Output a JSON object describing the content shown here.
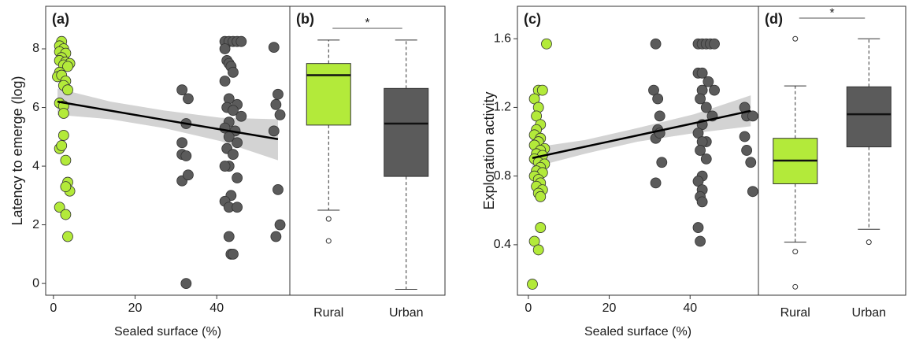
{
  "chart_data": [
    {
      "type": "scatter",
      "label": "(a)",
      "x_label": "Sealed surface (%)",
      "y_label": "Latency to emerge (log)",
      "xlim": [
        -1.9,
        57.9
      ],
      "ylim": [
        -0.4,
        9.45
      ],
      "xticks": [
        0,
        20,
        40
      ],
      "yticks": [
        0,
        2,
        4,
        6,
        8
      ],
      "series": [
        {
          "color": "#b3ea3a",
          "x": [
            2,
            1.5,
            2.5,
            1.5,
            3,
            2,
            1.5,
            3,
            4,
            2.5,
            3.5,
            1.5,
            1,
            2,
            3,
            2.5,
            3.5,
            1.5,
            2.5,
            2.5,
            2.5,
            1.5,
            2,
            3,
            3.5,
            4,
            3,
            1.5,
            3,
            3.5
          ],
          "values": [
            8.25,
            8.1,
            8.0,
            7.9,
            7.85,
            7.7,
            7.6,
            7.55,
            7.5,
            7.45,
            7.4,
            7.2,
            7.05,
            7.1,
            6.9,
            6.75,
            6.6,
            6.15,
            6.05,
            5.8,
            5.05,
            4.6,
            4.7,
            4.2,
            3.45,
            3.15,
            3.3,
            2.6,
            2.35,
            1.6
          ]
        },
        {
          "color": "#5b5b5b",
          "x": [
            31.5,
            31.5,
            31.5,
            31.5,
            32.5,
            33,
            32.5,
            32.5,
            33,
            42,
            43,
            44,
            45,
            46,
            42,
            42.5,
            43,
            43.5,
            44,
            42,
            43,
            45,
            42.5,
            44,
            46,
            43,
            42,
            44.5,
            43,
            45,
            42.5,
            44,
            43,
            42,
            45,
            43.5,
            42,
            43,
            45,
            43,
            43.5,
            44,
            54,
            55,
            54.5,
            55.5,
            54,
            55,
            55.5,
            54.5
          ],
          "values": [
            6.6,
            4.8,
            4.4,
            3.5,
            0.0,
            6.3,
            5.45,
            4.35,
            3.7,
            8.25,
            8.25,
            8.25,
            8.25,
            8.25,
            8.0,
            7.6,
            7.5,
            7.4,
            7.2,
            6.9,
            6.3,
            6.1,
            6.0,
            5.9,
            5.7,
            5.5,
            5.3,
            5.2,
            5.0,
            4.8,
            4.6,
            4.4,
            4.0,
            4.0,
            3.6,
            3.0,
            2.8,
            2.6,
            2.6,
            1.6,
            1.0,
            1.0,
            8.05,
            6.45,
            6.1,
            5.75,
            5.2,
            3.2,
            2.0,
            1.6
          ]
        }
      ],
      "fit": {
        "color": "#000000",
        "band_color": "#d3d3d3",
        "x": [
          1,
          14,
          27,
          41,
          55
        ],
        "values": [
          6.2,
          5.89,
          5.58,
          5.25,
          4.92
        ],
        "lower": [
          5.75,
          5.6,
          5.3,
          4.85,
          4.2
        ],
        "upper": [
          6.65,
          6.2,
          5.9,
          5.65,
          5.6
        ]
      }
    },
    {
      "type": "box",
      "label": "(b)",
      "ylim": [
        -0.4,
        9.45
      ],
      "categories": [
        "Rural",
        "Urban"
      ],
      "colors": [
        "#b3ea3a",
        "#5b5b5b"
      ],
      "boxes": [
        {
          "min": 2.5,
          "q1": 5.4,
          "median": 7.1,
          "q3": 7.5,
          "max": 8.3,
          "outliers": [
            2.2,
            1.45
          ]
        },
        {
          "min": -0.2,
          "q1": 3.65,
          "median": 5.45,
          "q3": 6.65,
          "max": 8.3,
          "outliers": []
        }
      ],
      "annotation": {
        "text": "*",
        "y": 8.7
      }
    },
    {
      "type": "scatter",
      "label": "(c)",
      "x_label": "Sealed surface (%)",
      "y_label": "Exploration activity",
      "xlim": [
        -2.7,
        56.9
      ],
      "ylim": [
        0.106,
        1.789
      ],
      "xticks": [
        0,
        20,
        40
      ],
      "yticks": [
        0.4,
        0.8,
        1.2,
        1.6
      ],
      "series": [
        {
          "color": "#b3ea3a",
          "x": [
            4.5,
            2.5,
            3.5,
            1.5,
            2.5,
            2,
            3,
            2,
            1.5,
            3,
            2.5,
            1.5,
            4,
            3,
            2,
            3.5,
            1.5,
            2.5,
            4,
            3,
            2,
            3.5,
            1.5,
            2.5,
            3,
            2,
            3.5,
            2.5,
            3,
            3,
            1.5,
            2.5,
            1
          ],
          "values": [
            1.57,
            1.3,
            1.3,
            1.25,
            1.2,
            1.15,
            1.1,
            1.07,
            1.04,
            1.02,
            1.0,
            0.98,
            0.96,
            0.95,
            0.93,
            0.92,
            0.9,
            0.88,
            0.87,
            0.85,
            0.83,
            0.82,
            0.8,
            0.78,
            0.76,
            0.74,
            0.72,
            0.7,
            0.68,
            0.5,
            0.42,
            0.37,
            0.17
          ]
        },
        {
          "color": "#5b5b5b",
          "x": [
            31.5,
            31,
            32,
            32.5,
            32,
            31.5,
            32.5,
            33,
            31.5,
            42,
            43,
            44,
            45,
            46,
            42,
            43,
            44.5,
            43,
            46,
            42.5,
            44,
            45.5,
            43,
            42,
            44,
            43,
            42.5,
            44,
            43,
            42,
            43,
            42.5,
            43,
            42,
            42.5,
            53.5,
            54,
            55.5,
            53.5,
            54,
            55,
            55.5
          ],
          "values": [
            1.57,
            1.3,
            1.25,
            1.15,
            1.07,
            1.02,
            1.05,
            0.88,
            0.76,
            1.57,
            1.57,
            1.57,
            1.57,
            1.57,
            1.4,
            1.4,
            1.35,
            1.3,
            1.3,
            1.25,
            1.2,
            1.15,
            1.1,
            1.05,
            1.0,
            1.0,
            0.95,
            0.9,
            0.8,
            0.77,
            0.72,
            0.68,
            0.65,
            0.5,
            0.42,
            1.2,
            1.15,
            1.15,
            1.03,
            0.95,
            0.88,
            0.71
          ]
        }
      ],
      "fit": {
        "color": "#000000",
        "band_color": "#d3d3d3",
        "x": [
          1,
          14,
          27,
          41,
          55
        ],
        "values": [
          0.905,
          0.971,
          1.037,
          1.108,
          1.18
        ],
        "lower": [
          0.85,
          0.93,
          1.0,
          1.05,
          1.09
        ],
        "upper": [
          0.965,
          1.01,
          1.08,
          1.16,
          1.27
        ]
      }
    },
    {
      "type": "box",
      "label": "(d)",
      "ylim": [
        0.106,
        1.789
      ],
      "categories": [
        "Rural",
        "Urban"
      ],
      "colors": [
        "#b3ea3a",
        "#5b5b5b"
      ],
      "boxes": [
        {
          "min": 0.415,
          "q1": 0.755,
          "median": 0.89,
          "q3": 1.02,
          "max": 1.325,
          "outliers": [
            0.36,
            0.155,
            1.6
          ]
        },
        {
          "min": 0.49,
          "q1": 0.97,
          "median": 1.16,
          "q3": 1.32,
          "max": 1.6,
          "outliers": [
            0.415
          ]
        }
      ],
      "annotation": {
        "text": "*",
        "y": 1.72
      }
    }
  ]
}
